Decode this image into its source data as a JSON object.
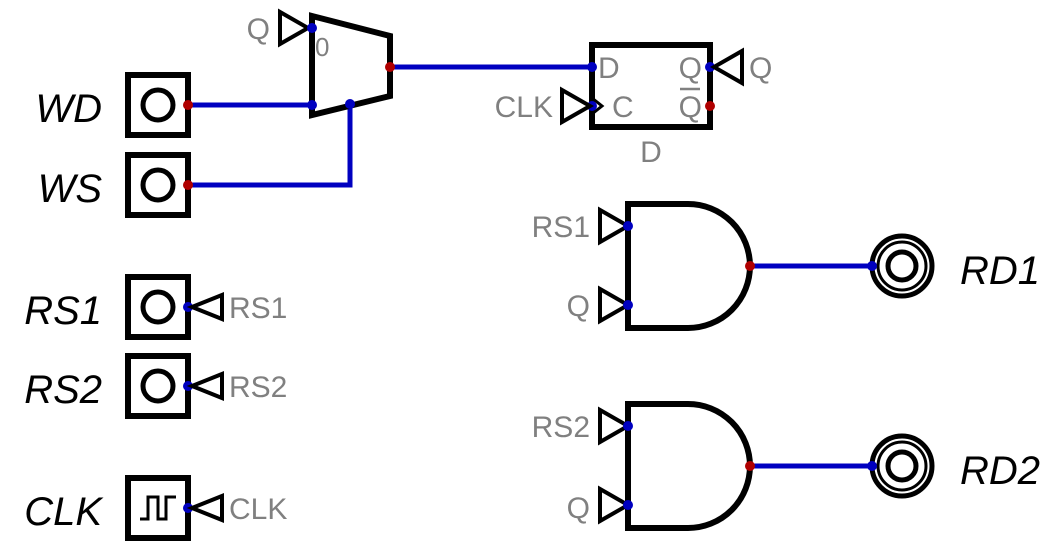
{
  "colors": {
    "wire": "#0000c0",
    "input_dot": "#0000c0",
    "output_dot": "#b00000",
    "label": "#000000",
    "tunnel_label": "#808080"
  },
  "inputs": {
    "wd": "WD",
    "ws": "WS",
    "rs1": "RS1",
    "rs2": "RS2",
    "clk": "CLK"
  },
  "outputs": {
    "rd1": "RD1",
    "rd2": "RD2"
  },
  "tunnels": {
    "rs1": "RS1",
    "rs2": "RS2",
    "clk_in": "CLK",
    "mux_q": "Q",
    "ff_q": "Q",
    "ff_clk": "CLK",
    "and1_rs1": "RS1",
    "and1_q": "Q",
    "and2_rs2": "RS2",
    "and2_q": "Q"
  },
  "mux": {
    "input0_label": "0"
  },
  "flipflop": {
    "d_pin": "D",
    "c_pin": "C",
    "q_pin": "Q",
    "qbar_pin": "Q",
    "name": "D"
  }
}
